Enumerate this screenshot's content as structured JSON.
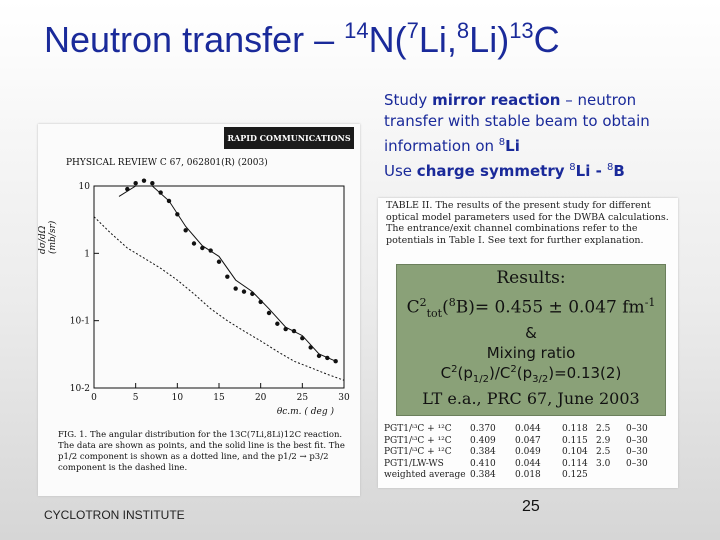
{
  "slide": {
    "title_main": "Neutron transfer – ",
    "title_sup1": "14",
    "title_n": "N(",
    "title_sup2": "7",
    "title_li": "Li,",
    "title_sup3": "8",
    "title_li2": "Li)",
    "title_sup4": "13",
    "title_c": "C",
    "footer": "CYCLOTRON INSTITUTE",
    "page_number": "25"
  },
  "study": {
    "t1": "Study ",
    "t2": "mirror reaction",
    "t3": " – neutron transfer with stable beam to obtain information on ",
    "t4_sup": "8",
    "t4": "Li",
    "t5": "Use ",
    "t6": "charge symmetry",
    "t7_sup": "8",
    "t7": "Li - ",
    "t8_sup": "8",
    "t8": "B"
  },
  "paper": {
    "band": "RAPID COMMUNICATIONS",
    "journal": "PHYSICAL REVIEW C 67, 062801(R)  (2003)",
    "ylabel": "dσ/dΩ (mb/sr)",
    "xlabel": "θc.m. ( deg )",
    "caption": "FIG. 1.  The angular distribution for the 13C(7Li,8Li)12C reaction. The data are shown as points, and the solid line is the best fit. The p1/2 component is shown as a dotted line, and the p1/2 → p3/2 component is the dashed line."
  },
  "chart_data": {
    "type": "scatter",
    "title": "",
    "xlabel": "θc.m. ( deg )",
    "ylabel": "dσ/dΩ (mb/sr)",
    "xlim": [
      0,
      30
    ],
    "ylim": [
      0.01,
      10
    ],
    "yscale": "log",
    "xticks": [
      "0",
      "5",
      "10",
      "15",
      "20",
      "25",
      "30"
    ],
    "yticks": [
      "10",
      "1",
      "10-1",
      "10-2"
    ],
    "series": [
      {
        "name": "data",
        "x": [
          4,
          5,
          6,
          7,
          8,
          9,
          10,
          11,
          12,
          13,
          14,
          15,
          16,
          17,
          18,
          19,
          20,
          21,
          22,
          23,
          24,
          25,
          26,
          27,
          28,
          29
        ],
        "y": [
          9,
          11,
          12,
          11,
          8,
          6,
          3.8,
          2.2,
          1.4,
          1.2,
          1.1,
          0.75,
          0.45,
          0.3,
          0.27,
          0.25,
          0.19,
          0.13,
          0.09,
          0.075,
          0.07,
          0.055,
          0.04,
          0.03,
          0.028,
          0.025
        ]
      },
      {
        "name": "best fit",
        "x": [
          3,
          5,
          7,
          9,
          11,
          13,
          15,
          17,
          19,
          21,
          23,
          25,
          27,
          29
        ],
        "y": [
          7,
          10,
          10,
          6,
          2.5,
          1.3,
          0.9,
          0.4,
          0.27,
          0.15,
          0.08,
          0.06,
          0.032,
          0.025
        ]
      },
      {
        "name": "p1/2",
        "x": [
          0,
          2,
          4,
          6,
          8,
          10,
          12,
          14,
          16,
          18,
          20,
          22,
          24,
          26,
          28,
          30
        ],
        "y": [
          3.5,
          2,
          1.2,
          0.85,
          0.6,
          0.4,
          0.25,
          0.15,
          0.1,
          0.07,
          0.05,
          0.035,
          0.025,
          0.02,
          0.016,
          0.013
        ]
      }
    ]
  },
  "table": {
    "caption": "TABLE II. The results of the present study for different optical model parameters used for the DWBA calculations. The entrance/exit channel combinations refer to the potentials in Table I. See text for further explanation.",
    "rows": [
      [
        "PGT1/ⁱ³C + ¹²C",
        "0.370",
        "0.044",
        "0.118",
        "2.5",
        "0–30"
      ],
      [
        "PGT1/ⁱ³C + ¹²C",
        "0.409",
        "0.047",
        "0.115",
        "2.9",
        "0–30"
      ],
      [
        "PGT1/ⁱ³C + ¹²C",
        "0.384",
        "0.049",
        "0.104",
        "2.5",
        "0–30"
      ],
      [
        "PGT1/LW-WS",
        "0.410",
        "0.044",
        "0.114",
        "3.0",
        "0–30"
      ],
      [
        "weighted average",
        "0.384",
        "0.018",
        "0.125",
        "",
        ""
      ]
    ]
  },
  "results": {
    "title": "Results:",
    "c2": "C",
    "c2_sup": "2",
    "c2_sub": "tot",
    "nucleus_open": "(",
    "nucleus_sup": "8",
    "nucleus": "B)= 0.455 ± 0.047 fm",
    "unit_sup": "-1",
    "amp": "&",
    "mixing": "Mixing ratio",
    "ratio_c": "C",
    "ratio_sup1": "2",
    "ratio_p1": "(p",
    "ratio_sub1": "1/2",
    "ratio_mid": ")/C",
    "ratio_sup2": "2",
    "ratio_p2": "(p",
    "ratio_sub2": "3/2",
    "ratio_end": ")=0.13(2)",
    "reference": "LT e.a., PRC 67, June 2003"
  }
}
